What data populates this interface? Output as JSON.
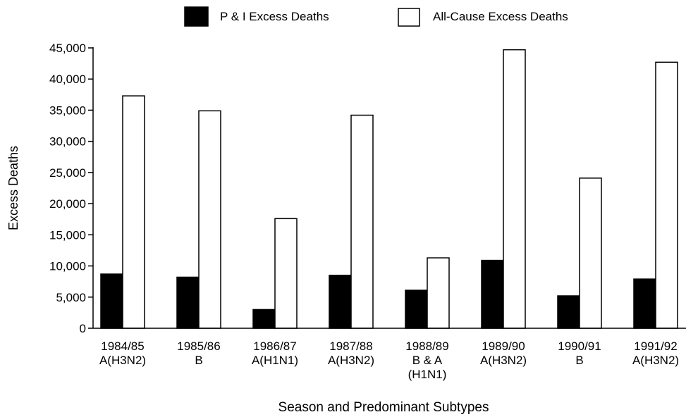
{
  "chart_data": {
    "type": "bar",
    "title": "",
    "xlabel": "Season and Predominant Subtypes",
    "ylabel": "Excess Deaths",
    "ylim": [
      0,
      45000
    ],
    "yticks": [
      0,
      5000,
      10000,
      15000,
      20000,
      25000,
      30000,
      35000,
      40000,
      45000
    ],
    "ytick_labels": [
      "0",
      "5,000",
      "10,000",
      "15,000",
      "20,000",
      "25,000",
      "30,000",
      "35,000",
      "40,000",
      "45,000"
    ],
    "categories": [
      [
        "1984/85",
        "A(H3N2)"
      ],
      [
        "1985/86",
        "B"
      ],
      [
        "1986/87",
        "A(H1N1)"
      ],
      [
        "1987/88",
        "A(H3N2)"
      ],
      [
        "1988/89",
        "B & A",
        "(H1N1)"
      ],
      [
        "1989/90",
        "A(H3N2)"
      ],
      [
        "1990/91",
        "B"
      ],
      [
        "1991/92",
        "A(H3N2)"
      ]
    ],
    "series": [
      {
        "name": "P & I Excess Deaths",
        "color": "#000000",
        "values": [
          8700,
          8200,
          3000,
          8500,
          6100,
          10900,
          5200,
          7900
        ]
      },
      {
        "name": "All-Cause Excess Deaths",
        "color": "#ffffff",
        "values": [
          37300,
          34900,
          17600,
          34200,
          11300,
          44700,
          24100,
          42700
        ]
      }
    ],
    "grid": false,
    "legend_position": "top"
  }
}
